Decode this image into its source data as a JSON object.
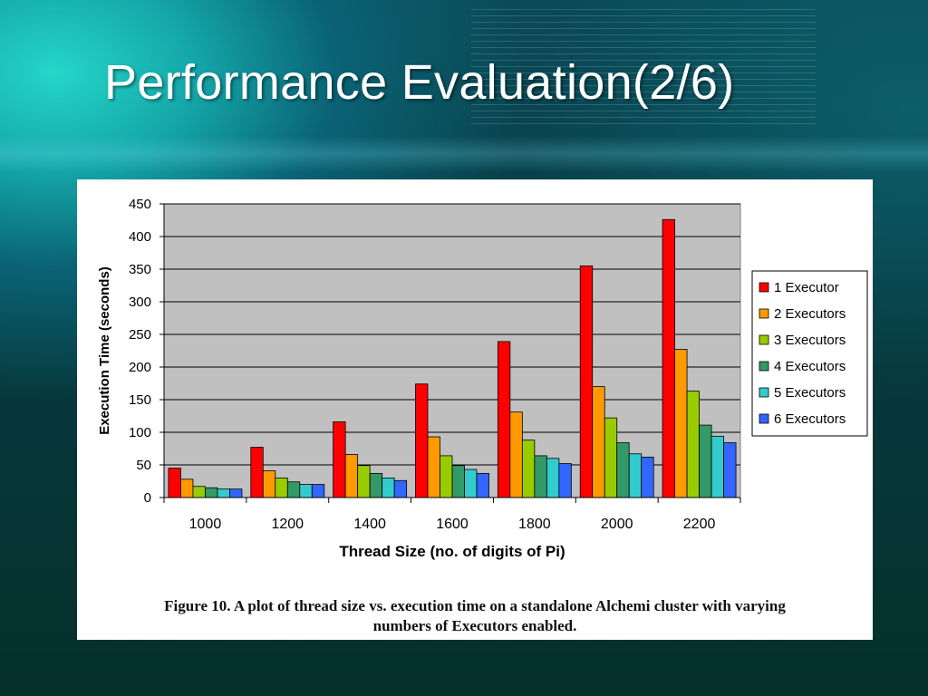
{
  "slide": {
    "title": "Performance Evaluation(2/6)"
  },
  "figure": {
    "caption_line1": "Figure 10. A plot of thread size vs. execution time on a standalone Alchemi cluster with varying",
    "caption_line2": "numbers of Executors enabled."
  },
  "colors": {
    "plot_background": "#c0c0c0",
    "series": [
      "#ff0000",
      "#ff9900",
      "#99cc00",
      "#339966",
      "#33cccc",
      "#3366ff"
    ]
  },
  "chart_data": {
    "type": "bar",
    "title": "",
    "xlabel": "Thread Size (no. of digits of Pi)",
    "ylabel": "Execution Time (seconds)",
    "ylim": [
      0,
      450
    ],
    "yticks": [
      0,
      50,
      100,
      150,
      200,
      250,
      300,
      350,
      400,
      450
    ],
    "grid": true,
    "legend_position": "right",
    "categories": [
      "1000",
      "1200",
      "1400",
      "1600",
      "1800",
      "2000",
      "2200"
    ],
    "series": [
      {
        "name": "1 Executor",
        "values": [
          45,
          77,
          116,
          174,
          239,
          355,
          426
        ]
      },
      {
        "name": "2 Executors",
        "values": [
          28,
          41,
          66,
          93,
          131,
          170,
          227
        ]
      },
      {
        "name": "3 Executors",
        "values": [
          17,
          30,
          49,
          64,
          88,
          122,
          163
        ]
      },
      {
        "name": "4 Executors",
        "values": [
          15,
          24,
          37,
          49,
          64,
          84,
          111
        ]
      },
      {
        "name": "5 Executors",
        "values": [
          13,
          20,
          30,
          43,
          60,
          67,
          94
        ]
      },
      {
        "name": "6 Executors",
        "values": [
          13,
          20,
          26,
          37,
          52,
          62,
          84
        ]
      }
    ]
  }
}
